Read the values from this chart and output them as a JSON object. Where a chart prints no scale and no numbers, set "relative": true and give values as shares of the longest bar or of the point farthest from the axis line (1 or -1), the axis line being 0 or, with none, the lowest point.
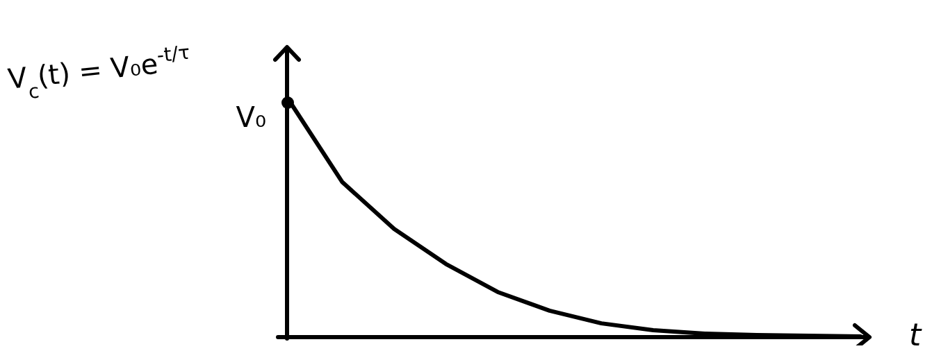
{
  "chart_data": {
    "type": "line",
    "relative": true,
    "xlabel": "t",
    "categories": [
      null,
      null,
      null,
      null,
      null,
      null,
      null,
      null,
      null,
      null,
      null,
      null
    ],
    "series": [
      {
        "color": "#000000",
        "values": [
          1,
          0.66,
          0.46,
          0.31,
          0.19,
          0.11,
          0.056,
          0.027,
          0.012,
          0.006,
          0.003,
          0
        ]
      }
    ],
    "annotations": [
      "V$_{c}$(t) = V₀e$^{-t/τ}$",
      "V₀"
    ],
    "grid": false,
    "legend": false
  }
}
